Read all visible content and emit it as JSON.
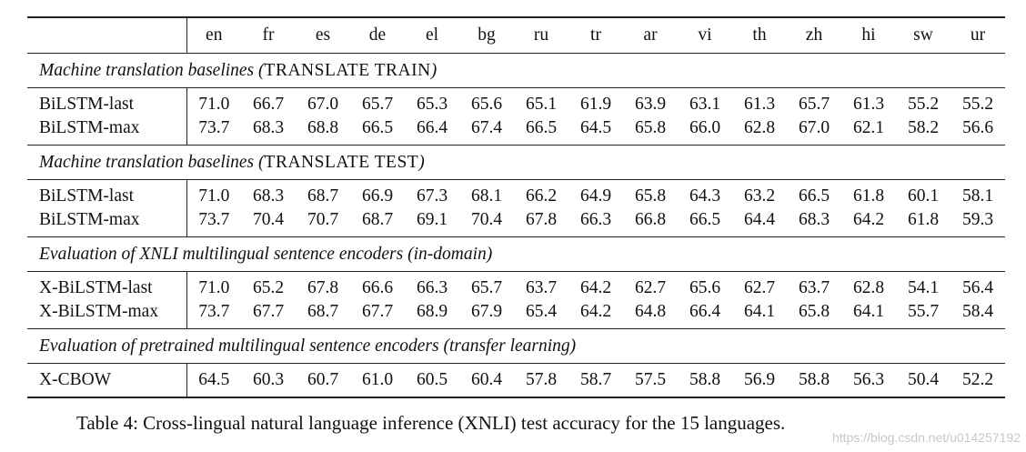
{
  "table": {
    "languages": [
      "en",
      "fr",
      "es",
      "de",
      "el",
      "bg",
      "ru",
      "tr",
      "ar",
      "vi",
      "th",
      "zh",
      "hi",
      "sw",
      "ur"
    ],
    "sections": [
      {
        "title": "Machine translation baselines",
        "setting": "TRANSLATE TRAIN",
        "rows": [
          {
            "label": "BiLSTM-last",
            "values": [
              "71.0",
              "66.7",
              "67.0",
              "65.7",
              "65.3",
              "65.6",
              "65.1",
              "61.9",
              "63.9",
              "63.1",
              "61.3",
              "65.7",
              "61.3",
              "55.2",
              "55.2"
            ],
            "bold": []
          },
          {
            "label": "BiLSTM-max",
            "values": [
              "73.7",
              "68.3",
              "68.8",
              "66.5",
              "66.4",
              "67.4",
              "66.5",
              "64.5",
              "65.8",
              "66.0",
              "62.8",
              "67.0",
              "62.1",
              "58.2",
              "56.6"
            ],
            "bold": [
              0
            ]
          }
        ]
      },
      {
        "title": "Machine translation baselines",
        "setting": "TRANSLATE TEST",
        "rows": [
          {
            "label": "BiLSTM-last",
            "values": [
              "71.0",
              "68.3",
              "68.7",
              "66.9",
              "67.3",
              "68.1",
              "66.2",
              "64.9",
              "65.8",
              "64.3",
              "63.2",
              "66.5",
              "61.8",
              "60.1",
              "58.1"
            ],
            "bold": []
          },
          {
            "label": "BiLSTM-max",
            "values": [
              "73.7",
              "70.4",
              "70.7",
              "68.7",
              "69.1",
              "70.4",
              "67.8",
              "66.3",
              "66.8",
              "66.5",
              "64.4",
              "68.3",
              "64.2",
              "61.8",
              "59.3"
            ],
            "bold": [
              0,
              1,
              2,
              3,
              4,
              5,
              6,
              7,
              8,
              9,
              10,
              11,
              12,
              13,
              14
            ]
          }
        ]
      },
      {
        "title": "Evaluation of XNLI multilingual sentence encoders (in-domain)",
        "setting": "",
        "rows": [
          {
            "label": "X-BiLSTM-last",
            "values": [
              "71.0",
              "65.2",
              "67.8",
              "66.6",
              "66.3",
              "65.7",
              "63.7",
              "64.2",
              "62.7",
              "65.6",
              "62.7",
              "63.7",
              "62.8",
              "54.1",
              "56.4"
            ],
            "bold": []
          },
          {
            "label": "X-BiLSTM-max",
            "values": [
              "73.7",
              "67.7",
              "68.7",
              "67.7",
              "68.9",
              "67.9",
              "65.4",
              "64.2",
              "64.8",
              "66.4",
              "64.1",
              "65.8",
              "64.1",
              "55.7",
              "58.4"
            ],
            "bold": [
              0
            ]
          }
        ]
      },
      {
        "title": "Evaluation of pretrained multilingual sentence encoders (transfer learning)",
        "setting": "",
        "rows": [
          {
            "label": "X-CBOW",
            "values": [
              "64.5",
              "60.3",
              "60.7",
              "61.0",
              "60.5",
              "60.4",
              "57.8",
              "58.7",
              "57.5",
              "58.8",
              "56.9",
              "58.8",
              "56.3",
              "50.4",
              "52.2"
            ],
            "bold": []
          }
        ]
      }
    ]
  },
  "caption": "Table 4: Cross-lingual natural language inference (XNLI) test accuracy for the 15 languages.",
  "watermark": "https://blog.csdn.net/u014257192"
}
